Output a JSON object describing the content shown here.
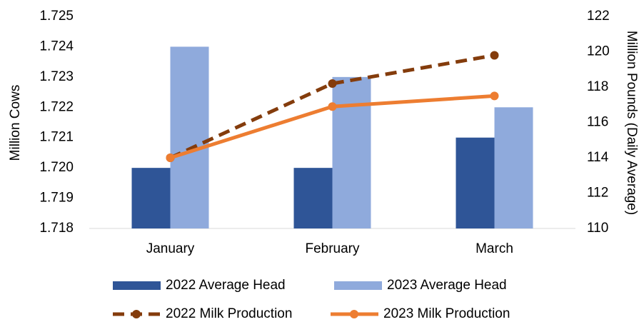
{
  "chart_data": {
    "type": "bar_line",
    "ylabel": "Million Cows",
    "y2label": "Million Pounds (Daily Average)",
    "categories": [
      "January",
      "February",
      "March"
    ],
    "ylim": [
      1.718,
      1.725
    ],
    "yticks": [
      1.718,
      1.719,
      {
        "value": 1.72,
        "label": "1.720"
      },
      1.721,
      1.722,
      1.723,
      1.724,
      1.725
    ],
    "y2lim": [
      110,
      122
    ],
    "y2ticks": [
      110,
      112,
      114,
      116,
      118,
      120,
      122
    ],
    "grid": false,
    "legend": "bottom",
    "series": [
      {
        "name": "2022 Average Head",
        "type": "bar",
        "color": "#2f5597",
        "values": [
          1.72,
          1.72,
          1.721
        ]
      },
      {
        "name": "2023 Average Head",
        "type": "bar",
        "color": "#8faadc",
        "values": [
          1.724,
          1.723,
          1.722
        ]
      },
      {
        "name": "2022 Milk Production",
        "type": "line",
        "dashed": true,
        "axis": "y2",
        "color": "#843c0c",
        "values": [
          114.0,
          118.2,
          119.8
        ]
      },
      {
        "name": "2023 Milk Production",
        "type": "line",
        "dashed": false,
        "axis": "y2",
        "color": "#ed7d31",
        "values": [
          114.0,
          116.9,
          117.5
        ]
      }
    ]
  }
}
